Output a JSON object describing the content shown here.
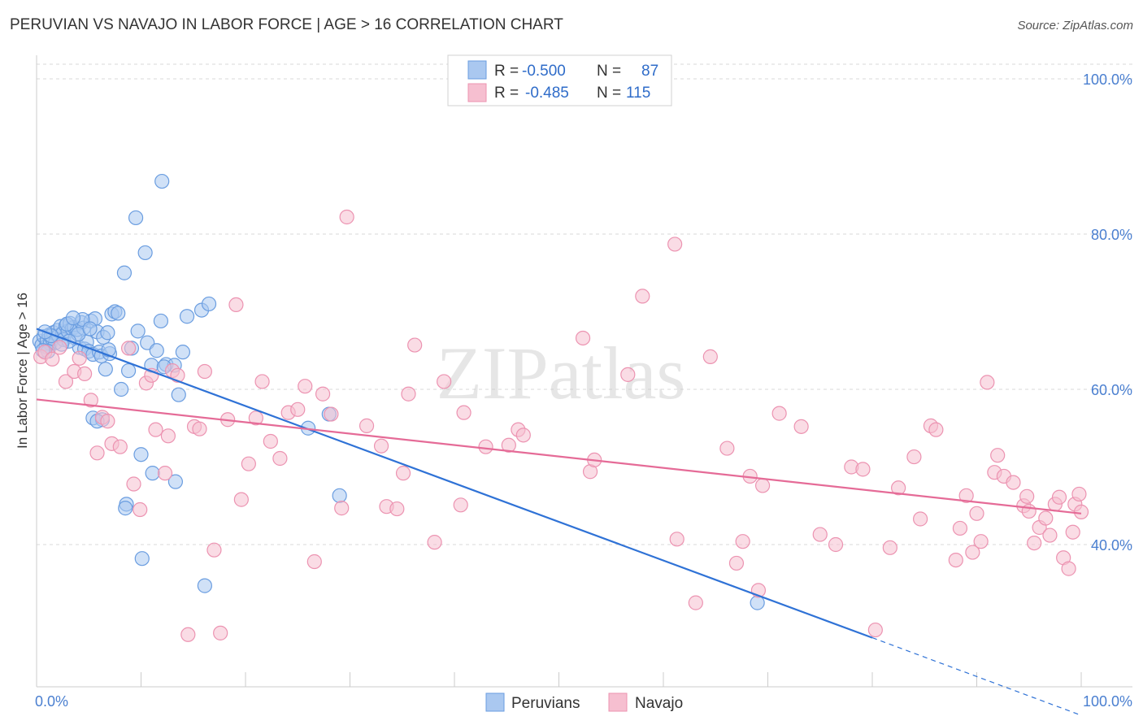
{
  "chart_data": {
    "type": "scatter",
    "title": "PERUVIAN VS NAVAJO IN LABOR FORCE | AGE > 16 CORRELATION CHART",
    "source": "Source: ZipAtlas.com",
    "xlabel": "",
    "ylabel": "In Labor Force | Age > 16",
    "xlim": [
      0,
      100
    ],
    "ylim": [
      20,
      102
    ],
    "x_tick_labels": [
      "0.0%",
      "100.0%"
    ],
    "y_ticks": [
      40,
      60,
      80,
      100
    ],
    "y_tick_labels": [
      "40.0%",
      "60.0%",
      "80.0%",
      "100.0%"
    ],
    "watermark": "ZIPatlas",
    "stats": [
      {
        "r_label": "R =",
        "r": "-0.500",
        "n_label": "N =",
        "n": "87"
      },
      {
        "r_label": "R =",
        "r": "-0.485",
        "n_label": "N =",
        "n": "115"
      }
    ],
    "colors": {
      "peruvians_fill": "#aac8f0",
      "peruvians_stroke": "#6a9de0",
      "peruvians_line": "#2f72d6",
      "navajo_fill": "#f6bfd0",
      "navajo_stroke": "#ec93b1",
      "navajo_line": "#e56b97",
      "grid": "#d8d8d8"
    },
    "series": [
      {
        "name": "Peruvians",
        "trend": {
          "x0": 0,
          "y0": 67.8,
          "x1": 80,
          "y1": 28.0,
          "dash_x1": 100,
          "dash_y1": 18.0
        },
        "points": [
          [
            0.3,
            66.2
          ],
          [
            0.5,
            65.7
          ],
          [
            0.7,
            66.8
          ],
          [
            0.9,
            65.5
          ],
          [
            1.0,
            66.3
          ],
          [
            1.2,
            67.0
          ],
          [
            1.3,
            65.9
          ],
          [
            1.5,
            66.5
          ],
          [
            1.6,
            67.3
          ],
          [
            1.8,
            66.0
          ],
          [
            2.0,
            67.6
          ],
          [
            2.1,
            66.9
          ],
          [
            2.3,
            68.1
          ],
          [
            2.5,
            67.2
          ],
          [
            2.6,
            66.4
          ],
          [
            2.8,
            68.2
          ],
          [
            3.0,
            67.5
          ],
          [
            3.2,
            68.5
          ],
          [
            3.4,
            67.8
          ],
          [
            3.6,
            68.0
          ],
          [
            3.7,
            66.6
          ],
          [
            3.9,
            67.7
          ],
          [
            4.1,
            65.4
          ],
          [
            4.3,
            68.6
          ],
          [
            4.5,
            67.9
          ],
          [
            4.6,
            65.2
          ],
          [
            4.8,
            66.1
          ],
          [
            5.0,
            64.9
          ],
          [
            5.2,
            68.8
          ],
          [
            5.4,
            64.5
          ],
          [
            5.6,
            69.1
          ],
          [
            5.8,
            67.4
          ],
          [
            6.0,
            64.8
          ],
          [
            6.2,
            64.3
          ],
          [
            6.4,
            66.7
          ],
          [
            6.6,
            62.6
          ],
          [
            6.8,
            67.3
          ],
          [
            7.0,
            64.6
          ],
          [
            7.2,
            69.7
          ],
          [
            7.5,
            70.0
          ],
          [
            7.8,
            69.8
          ],
          [
            8.1,
            60.0
          ],
          [
            8.4,
            75.0
          ],
          [
            8.8,
            62.4
          ],
          [
            9.1,
            65.3
          ],
          [
            9.5,
            82.1
          ],
          [
            9.7,
            67.5
          ],
          [
            10.0,
            51.6
          ],
          [
            10.4,
            77.6
          ],
          [
            10.6,
            66.0
          ],
          [
            11.0,
            63.1
          ],
          [
            11.5,
            65.0
          ],
          [
            11.9,
            68.8
          ],
          [
            12.0,
            86.8
          ],
          [
            12.4,
            63.2
          ],
          [
            13.2,
            63.1
          ],
          [
            13.6,
            59.3
          ],
          [
            14.0,
            64.8
          ],
          [
            14.4,
            69.4
          ],
          [
            15.8,
            70.2
          ],
          [
            16.5,
            71.0
          ],
          [
            5.4,
            56.3
          ],
          [
            6.3,
            56.1
          ],
          [
            5.8,
            55.9
          ],
          [
            8.6,
            45.2
          ],
          [
            8.5,
            44.7
          ],
          [
            11.1,
            49.2
          ],
          [
            13.3,
            48.1
          ],
          [
            10.1,
            38.2
          ],
          [
            16.1,
            34.7
          ],
          [
            26.0,
            55.0
          ],
          [
            28.0,
            56.8
          ],
          [
            29.0,
            46.3
          ],
          [
            69.0,
            32.5
          ],
          [
            4.0,
            67.1
          ],
          [
            3.1,
            66.2
          ],
          [
            2.4,
            65.8
          ],
          [
            1.4,
            66.9
          ],
          [
            0.8,
            67.4
          ],
          [
            2.9,
            68.4
          ],
          [
            6.9,
            65.1
          ],
          [
            4.4,
            69.0
          ],
          [
            1.1,
            64.9
          ],
          [
            0.6,
            65.0
          ],
          [
            5.1,
            67.8
          ],
          [
            3.5,
            69.2
          ],
          [
            12.2,
            62.9
          ]
        ]
      },
      {
        "name": "Navajo",
        "trend": {
          "x0": 0,
          "y0": 58.7,
          "x1": 100,
          "y1": 44.0
        },
        "points": [
          [
            0.4,
            64.2
          ],
          [
            0.8,
            64.8
          ],
          [
            1.5,
            63.9
          ],
          [
            2.2,
            65.4
          ],
          [
            2.8,
            61.0
          ],
          [
            3.6,
            62.3
          ],
          [
            4.1,
            64.0
          ],
          [
            4.6,
            62.0
          ],
          [
            5.2,
            58.6
          ],
          [
            5.8,
            51.8
          ],
          [
            6.3,
            56.4
          ],
          [
            6.8,
            55.9
          ],
          [
            7.2,
            53.0
          ],
          [
            8.0,
            52.6
          ],
          [
            8.8,
            65.3
          ],
          [
            9.3,
            47.8
          ],
          [
            9.9,
            44.5
          ],
          [
            10.5,
            60.8
          ],
          [
            11.0,
            61.8
          ],
          [
            11.4,
            54.8
          ],
          [
            12.3,
            49.2
          ],
          [
            12.6,
            54.0
          ],
          [
            13.0,
            62.4
          ],
          [
            13.5,
            61.8
          ],
          [
            14.5,
            28.4
          ],
          [
            15.1,
            55.2
          ],
          [
            15.6,
            54.9
          ],
          [
            16.1,
            62.3
          ],
          [
            17.0,
            39.3
          ],
          [
            17.6,
            28.6
          ],
          [
            18.3,
            56.1
          ],
          [
            19.1,
            70.9
          ],
          [
            19.6,
            45.8
          ],
          [
            20.3,
            50.4
          ],
          [
            21.0,
            56.3
          ],
          [
            21.6,
            61.0
          ],
          [
            22.4,
            53.3
          ],
          [
            23.3,
            51.1
          ],
          [
            24.1,
            57.0
          ],
          [
            25.0,
            57.4
          ],
          [
            25.7,
            60.4
          ],
          [
            26.6,
            37.8
          ],
          [
            27.4,
            59.4
          ],
          [
            28.2,
            56.8
          ],
          [
            29.2,
            44.7
          ],
          [
            29.7,
            82.2
          ],
          [
            31.6,
            55.3
          ],
          [
            33.0,
            52.7
          ],
          [
            33.5,
            44.9
          ],
          [
            34.5,
            44.6
          ],
          [
            35.1,
            49.2
          ],
          [
            35.6,
            59.4
          ],
          [
            36.2,
            65.7
          ],
          [
            38.1,
            40.3
          ],
          [
            39.0,
            61.0
          ],
          [
            40.6,
            45.1
          ],
          [
            40.9,
            57.0
          ],
          [
            43.0,
            52.6
          ],
          [
            45.2,
            52.8
          ],
          [
            46.1,
            54.8
          ],
          [
            46.6,
            54.1
          ],
          [
            52.3,
            66.6
          ],
          [
            53.0,
            49.4
          ],
          [
            53.4,
            50.9
          ],
          [
            56.6,
            61.9
          ],
          [
            58.0,
            72.0
          ],
          [
            61.1,
            78.7
          ],
          [
            61.3,
            40.7
          ],
          [
            63.1,
            32.5
          ],
          [
            64.5,
            64.2
          ],
          [
            66.1,
            52.4
          ],
          [
            67.0,
            37.6
          ],
          [
            67.6,
            40.4
          ],
          [
            68.3,
            48.8
          ],
          [
            69.1,
            34.1
          ],
          [
            69.5,
            47.6
          ],
          [
            71.1,
            56.9
          ],
          [
            73.2,
            55.2
          ],
          [
            75.0,
            41.3
          ],
          [
            76.5,
            40.0
          ],
          [
            78.0,
            50.0
          ],
          [
            79.1,
            49.7
          ],
          [
            80.3,
            29.0
          ],
          [
            81.7,
            39.6
          ],
          [
            82.5,
            47.3
          ],
          [
            84.0,
            51.3
          ],
          [
            84.6,
            43.3
          ],
          [
            85.6,
            55.3
          ],
          [
            86.1,
            54.8
          ],
          [
            88.0,
            38.0
          ],
          [
            88.4,
            42.1
          ],
          [
            89.0,
            46.3
          ],
          [
            89.6,
            39.0
          ],
          [
            90.4,
            40.4
          ],
          [
            91.0,
            60.9
          ],
          [
            91.7,
            49.3
          ],
          [
            92.0,
            51.5
          ],
          [
            92.6,
            48.8
          ],
          [
            93.5,
            48.0
          ],
          [
            94.5,
            45.0
          ],
          [
            94.8,
            46.2
          ],
          [
            95.5,
            40.2
          ],
          [
            96.0,
            42.2
          ],
          [
            96.6,
            43.4
          ],
          [
            97.0,
            41.2
          ],
          [
            97.5,
            45.2
          ],
          [
            97.9,
            46.1
          ],
          [
            98.3,
            38.3
          ],
          [
            98.8,
            36.9
          ],
          [
            99.4,
            45.2
          ],
          [
            99.8,
            46.5
          ],
          [
            100.0,
            44.2
          ],
          [
            99.2,
            41.6
          ],
          [
            95.0,
            44.3
          ],
          [
            90.0,
            44.0
          ]
        ]
      }
    ],
    "legend": [
      "Peruvians",
      "Navajo"
    ]
  }
}
